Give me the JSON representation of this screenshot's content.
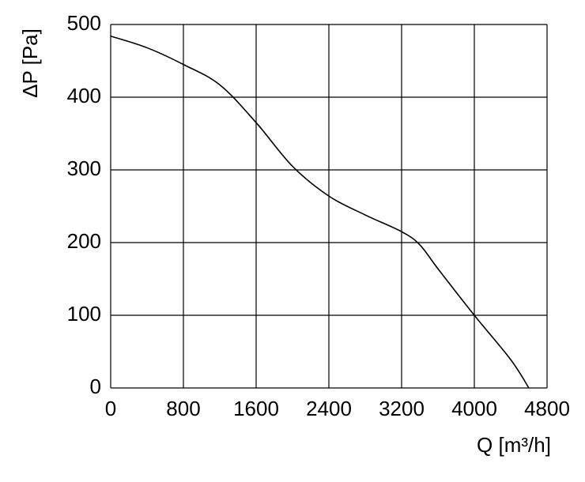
{
  "chart_data": {
    "type": "line",
    "x_label": "Q [m³/h]",
    "y_label": "ΔP [Pa]",
    "x": [
      0,
      400,
      800,
      1200,
      1600,
      2000,
      2400,
      2800,
      3200,
      3400,
      3600,
      4000,
      4400,
      4600
    ],
    "series": [
      {
        "color": "#000000",
        "values": [
          484,
          468,
          445,
          417,
          365,
          305,
          264,
          238,
          215,
          197,
          164,
          100,
          39,
          0
        ]
      }
    ],
    "xlim": [
      0,
      4800
    ],
    "xticks": [
      0,
      800,
      1600,
      2400,
      3200,
      4000,
      4800
    ],
    "ylim": [
      0,
      500
    ],
    "yticks": [
      0,
      100,
      200,
      300,
      400,
      500
    ],
    "grid": true
  }
}
